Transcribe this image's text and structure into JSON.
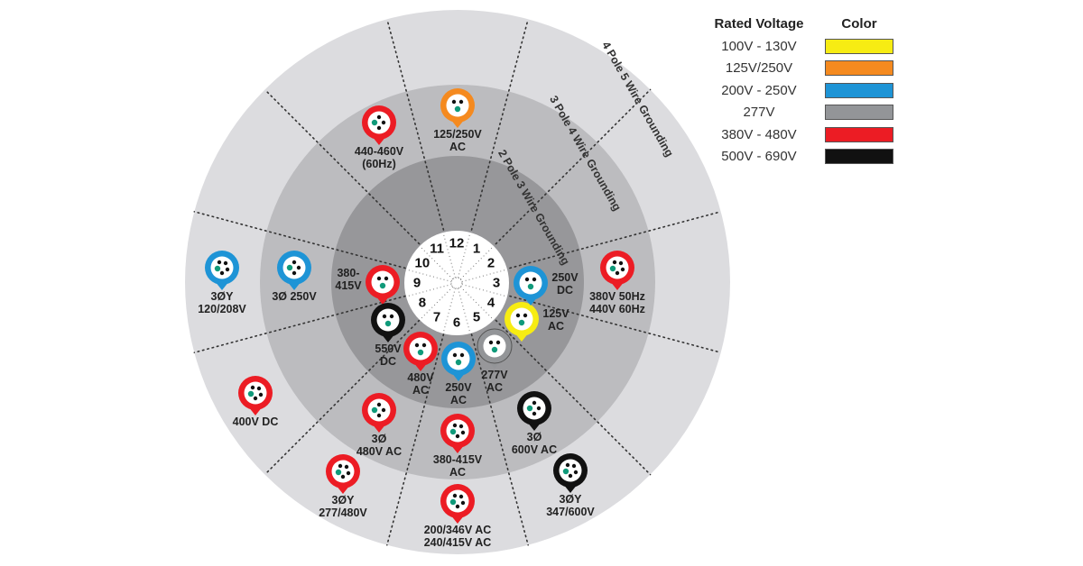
{
  "legend": {
    "header_voltage": "Rated Voltage",
    "header_color": "Color",
    "items": [
      {
        "label": "100V - 130V",
        "color": "#f7ec13"
      },
      {
        "label": "125V/250V",
        "color": "#f58a1f"
      },
      {
        "label": "200V - 250V",
        "color": "#1e94d6"
      },
      {
        "label": "277V",
        "color": "#939598"
      },
      {
        "label": "380V - 480V",
        "color": "#ec1c24"
      },
      {
        "label": "500V - 690V",
        "color": "#111111"
      }
    ]
  },
  "rings": {
    "inner": "2 Pole 3 Wire Grounding",
    "middle": "3 Pole 4 Wire Grounding",
    "outer": "4 Pole 5 Wire Grounding"
  },
  "clock": [
    "12",
    "1",
    "2",
    "3",
    "4",
    "5",
    "6",
    "7",
    "8",
    "9",
    "10",
    "11"
  ],
  "connectors": [
    {
      "color": "#f58a1f",
      "pins": 3,
      "label": [
        "125/250V",
        "AC"
      ]
    },
    {
      "color": "#ec1c24",
      "pins": 4,
      "label": [
        "440-460V",
        "(60Hz)"
      ]
    },
    {
      "color": "#1e94d6",
      "pins": 5,
      "label": [
        "3ØY",
        "120/208V"
      ]
    },
    {
      "color": "#1e94d6",
      "pins": 4,
      "label": [
        "3Ø 250V"
      ]
    },
    {
      "color": "#ec1c24",
      "pins": 3,
      "label": [
        "380-",
        "415V"
      ]
    },
    {
      "color": "#111111",
      "pins": 3,
      "label": [
        "550V",
        "DC"
      ]
    },
    {
      "color": "#ec1c24",
      "pins": 3,
      "label": [
        "480V",
        "AC"
      ]
    },
    {
      "color": "#1e94d6",
      "pins": 3,
      "label": [
        "250V",
        "AC"
      ]
    },
    {
      "color": "#939598",
      "pins": 3,
      "label": [
        "277V",
        "AC"
      ]
    },
    {
      "color": "#f7ec13",
      "pins": 3,
      "label": [
        "125V",
        "AC"
      ]
    },
    {
      "color": "#1e94d6",
      "pins": 3,
      "label": [
        "250V",
        "DC"
      ]
    },
    {
      "color": "#ec1c24",
      "pins": 5,
      "label": [
        "380V 50Hz",
        "440V 60Hz"
      ]
    },
    {
      "color": "#ec1c24",
      "pins": 5,
      "label": [
        "400V DC"
      ]
    },
    {
      "color": "#ec1c24",
      "pins": 4,
      "label": [
        "3Ø",
        "480V AC"
      ]
    },
    {
      "color": "#ec1c24",
      "pins": 5,
      "label": [
        "380-415V",
        "AC"
      ]
    },
    {
      "color": "#111111",
      "pins": 4,
      "label": [
        "3Ø",
        "600V AC"
      ]
    },
    {
      "color": "#111111",
      "pins": 5,
      "label": [
        "3ØY",
        "347/600V"
      ]
    },
    {
      "color": "#ec1c24",
      "pins": 5,
      "label": [
        "3ØY",
        "277/480V"
      ]
    },
    {
      "color": "#ec1c24",
      "pins": 5,
      "label": [
        "200/346V AC",
        "240/415V AC"
      ]
    }
  ]
}
